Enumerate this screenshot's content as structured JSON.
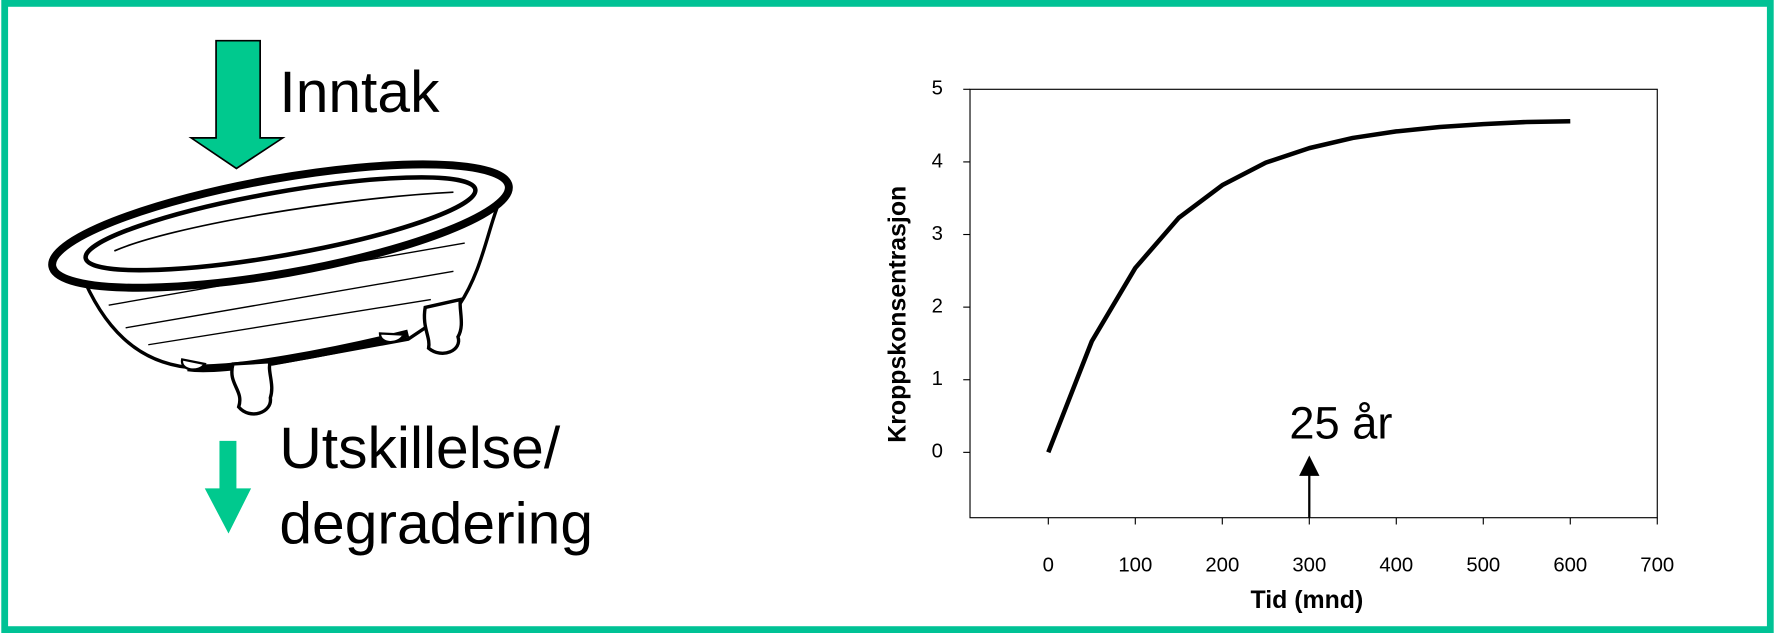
{
  "left_panel": {
    "inflow_label": "Inntak",
    "outflow_label_lines": [
      "Utskillelse/",
      "degradering"
    ]
  },
  "chart_data": {
    "type": "line",
    "x": [
      0,
      50,
      100,
      150,
      200,
      250,
      300,
      350,
      400,
      450,
      500,
      550,
      600
    ],
    "series": [
      {
        "color": "#000000",
        "values": [
          0,
          1.53,
          2.54,
          3.23,
          3.68,
          3.99,
          4.19,
          4.33,
          4.42,
          4.48,
          4.52,
          4.55,
          4.56
        ]
      }
    ],
    "xlabel": "Tid (mnd)",
    "ylabel": "Kroppskonsentrasjon",
    "xlim": [
      -90,
      700
    ],
    "ylim": [
      -0.9,
      5
    ],
    "xticks": [
      0,
      100,
      200,
      300,
      400,
      500,
      600,
      700
    ],
    "yticks": [
      0,
      1,
      2,
      3,
      4,
      5
    ],
    "annotation": {
      "text": "25 år",
      "x": 300
    },
    "grid": false
  }
}
